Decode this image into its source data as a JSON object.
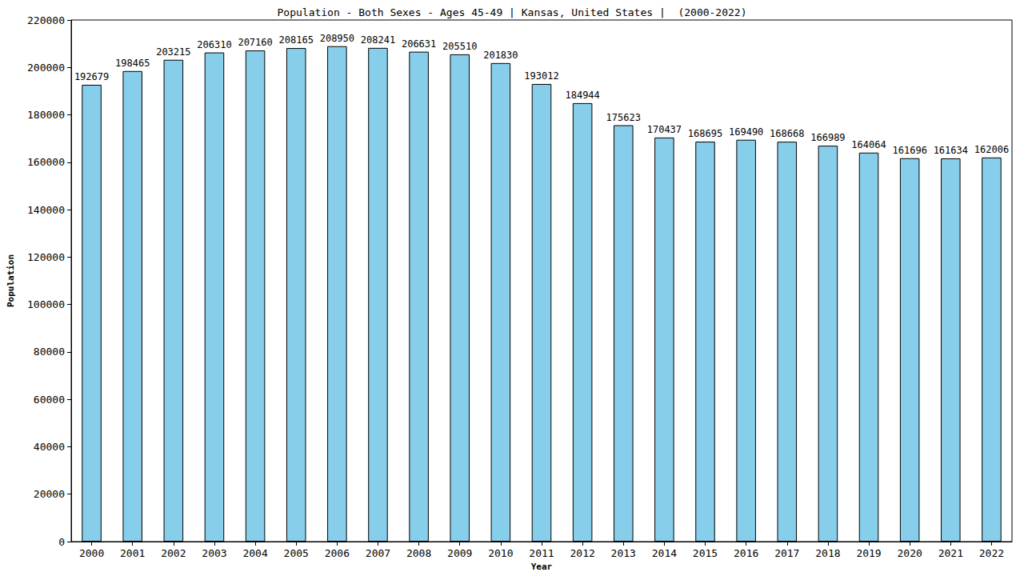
{
  "chart_data": {
    "type": "bar",
    "title": "Population - Both Sexes - Ages 45-49 | Kansas, United States |  (2000-2022)",
    "x_label": "Year",
    "y_label": "Population",
    "categories": [
      "2000",
      "2001",
      "2002",
      "2003",
      "2004",
      "2005",
      "2006",
      "2007",
      "2008",
      "2009",
      "2010",
      "2011",
      "2012",
      "2013",
      "2014",
      "2015",
      "2016",
      "2017",
      "2018",
      "2019",
      "2020",
      "2021",
      "2022"
    ],
    "values": [
      192679,
      198465,
      203215,
      206310,
      207160,
      208165,
      208950,
      208241,
      206631,
      205510,
      201830,
      193012,
      184944,
      175623,
      170437,
      168695,
      169490,
      168668,
      166989,
      164064,
      161696,
      161634,
      162006
    ],
    "color": "#87ceeb",
    "ylim": [
      0,
      220000
    ],
    "yticks": [
      0,
      20000,
      40000,
      60000,
      80000,
      100000,
      120000,
      140000,
      160000,
      180000,
      200000,
      220000
    ],
    "grid": false,
    "data_labels": true
  }
}
